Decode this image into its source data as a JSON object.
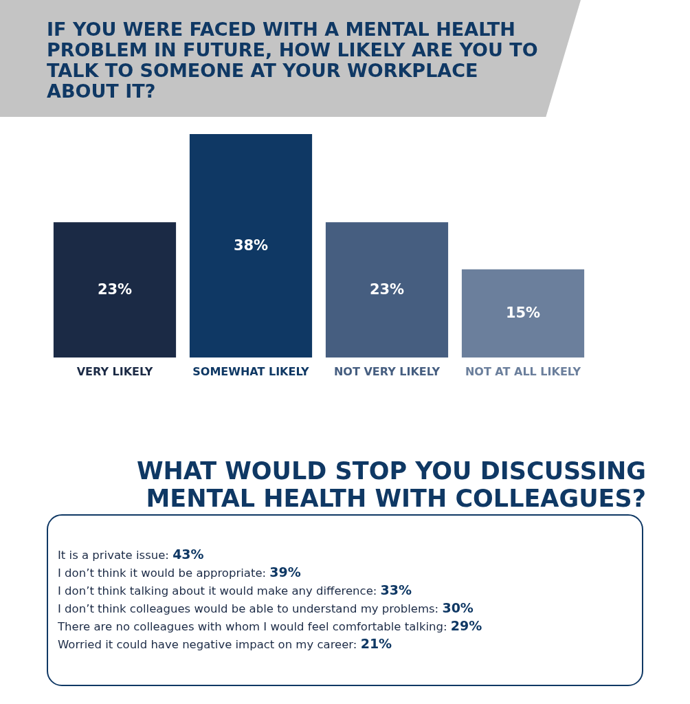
{
  "chart_data": [
    {
      "type": "bar",
      "title": "IF YOU WERE FACED WITH A MENTAL HEALTH PROBLEM IN FUTURE, HOW LIKELY ARE YOU TO TALK TO SOMEONE AT YOUR WORKPLACE ABOUT IT?",
      "categories": [
        "VERY LIKELY",
        "SOMEWHAT LIKELY",
        "NOT VERY LIKELY",
        "NOT AT ALL LIKELY"
      ],
      "values": [
        23,
        38,
        23,
        15
      ],
      "colors": [
        "#1b2a45",
        "#0f3864",
        "#465e80",
        "#6b7f9c"
      ],
      "value_labels": [
        "23%",
        "38%",
        "23%",
        "15%"
      ]
    },
    {
      "type": "other",
      "title": "WHAT WOULD STOP YOU DISCUSSING MENTAL HEALTH WITH COLLEAGUES?",
      "annotations": [
        "It is a private issue: 43%",
        "I don’t think it would be appropriate: 39%",
        "I don’t think talking about it would make any difference: 33%",
        "I don’t think colleagues would be able to understand my problems: 30%",
        "There are no colleagues with whom I would feel comfortable talking: 29%",
        "Worried it could have negative impact on my career: 21%"
      ]
    }
  ]
}
